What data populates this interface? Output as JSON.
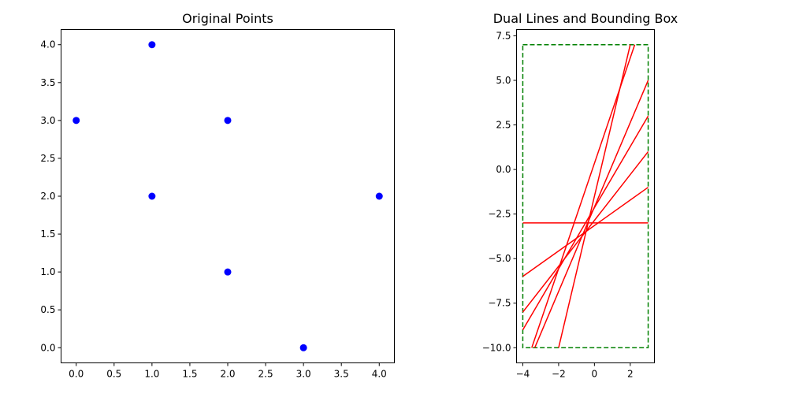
{
  "chart_data": [
    {
      "type": "scatter",
      "title": "Original Points",
      "xlabel": "",
      "ylabel": "",
      "xlim": [
        -0.2,
        4.2
      ],
      "ylim": [
        -0.2,
        4.2
      ],
      "xticks": [
        0.0,
        0.5,
        1.0,
        1.5,
        2.0,
        2.5,
        3.0,
        3.5,
        4.0
      ],
      "yticks": [
        0.0,
        0.5,
        1.0,
        1.5,
        2.0,
        2.5,
        3.0,
        3.5,
        4.0
      ],
      "grid": false,
      "series": [
        {
          "color": "#0000ff",
          "points": [
            [
              1,
              4
            ],
            [
              0,
              3
            ],
            [
              2,
              3
            ],
            [
              1,
              2
            ],
            [
              4,
              2
            ],
            [
              2,
              1
            ],
            [
              3,
              0
            ]
          ]
        }
      ]
    },
    {
      "type": "line",
      "title": "Dual Lines and Bounding Box",
      "xlabel": "",
      "ylabel": "",
      "xlim": [
        -4.35,
        3.35
      ],
      "ylim": [
        -10.85,
        7.85
      ],
      "xticks": [
        -4,
        -2,
        0,
        2
      ],
      "yticks": [
        -10.0,
        -7.5,
        -5.0,
        -2.5,
        0.0,
        2.5,
        5.0,
        7.5
      ],
      "grid": false,
      "series": [
        {
          "color": "#ff0000",
          "points": [
            [
              -3.5,
              -10
            ],
            [
              2.25,
              7
            ]
          ]
        },
        {
          "color": "#ff0000",
          "points": [
            [
              -4,
              -3
            ],
            [
              3,
              -3
            ]
          ]
        },
        {
          "color": "#ff0000",
          "points": [
            [
              -2,
              -10
            ],
            [
              2,
              7
            ]
          ]
        },
        {
          "color": "#ff0000",
          "points": [
            [
              -3.3333,
              -10
            ],
            [
              3,
              5
            ]
          ]
        },
        {
          "color": "#ff0000",
          "points": [
            [
              -4,
              -9
            ],
            [
              3,
              3
            ]
          ]
        },
        {
          "color": "#ff0000",
          "points": [
            [
              -4,
              -8
            ],
            [
              3,
              1
            ]
          ]
        },
        {
          "color": "#ff0000",
          "points": [
            [
              -4,
              -6
            ],
            [
              3,
              -1
            ]
          ]
        }
      ],
      "bounding_box": {
        "x": [
          -4,
          3
        ],
        "y": [
          -10,
          7
        ],
        "color": "#008000",
        "style": "dashed"
      }
    }
  ]
}
